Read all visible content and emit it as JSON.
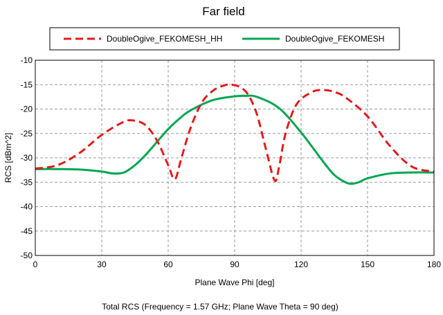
{
  "chart_data": {
    "type": "line",
    "title": "Far field",
    "xlabel": "Plane Wave Phi [deg]",
    "ylabel": "RCS [dBm^2]",
    "footer": "Total RCS (Frequency = 1.57 GHz; Plane Wave Theta = 90 deg)",
    "xlim": [
      0,
      180
    ],
    "ylim": [
      -50,
      -10
    ],
    "xticks": [
      0,
      30,
      60,
      90,
      120,
      150,
      180
    ],
    "yticks": [
      -10,
      -15,
      -20,
      -25,
      -30,
      -35,
      -40,
      -45,
      -50
    ],
    "grid": true,
    "legend_position": "top",
    "series": [
      {
        "name": "DoubleOgive_FEKOMESH_HH",
        "color": "#e31a1c",
        "style": "dashed",
        "x": [
          0,
          10,
          20,
          30,
          40,
          45,
          50,
          55,
          60,
          63,
          66,
          70,
          75,
          80,
          85,
          88,
          92,
          96,
          100,
          104,
          108,
          110,
          113,
          118,
          125,
          130,
          135,
          140,
          150,
          160,
          170,
          180
        ],
        "y": [
          -32.2,
          -31.5,
          -29.0,
          -25.3,
          -22.6,
          -22.4,
          -23.4,
          -26.5,
          -31.5,
          -34.4,
          -30.0,
          -24.0,
          -18.8,
          -16.3,
          -15.2,
          -15.0,
          -15.4,
          -17.0,
          -21.0,
          -28.0,
          -34.6,
          -32.0,
          -25.0,
          -19.0,
          -16.5,
          -16.1,
          -16.5,
          -17.6,
          -21.5,
          -27.5,
          -31.8,
          -32.8
        ]
      },
      {
        "name": "DoubleOgive_FEKOMESH",
        "color": "#00a651",
        "style": "solid",
        "x": [
          0,
          10,
          20,
          30,
          35,
          40,
          45,
          50,
          55,
          60,
          65,
          70,
          80,
          90,
          95,
          100,
          110,
          120,
          130,
          135,
          140,
          143,
          146,
          150,
          160,
          170,
          180
        ],
        "y": [
          -32.3,
          -32.3,
          -32.4,
          -32.8,
          -33.2,
          -33.0,
          -31.5,
          -29.3,
          -26.7,
          -24.1,
          -22.0,
          -20.3,
          -18.2,
          -17.4,
          -17.3,
          -17.5,
          -19.8,
          -24.8,
          -30.8,
          -33.5,
          -35.0,
          -35.3,
          -35.0,
          -34.2,
          -33.2,
          -33.0,
          -33.0
        ]
      }
    ]
  }
}
